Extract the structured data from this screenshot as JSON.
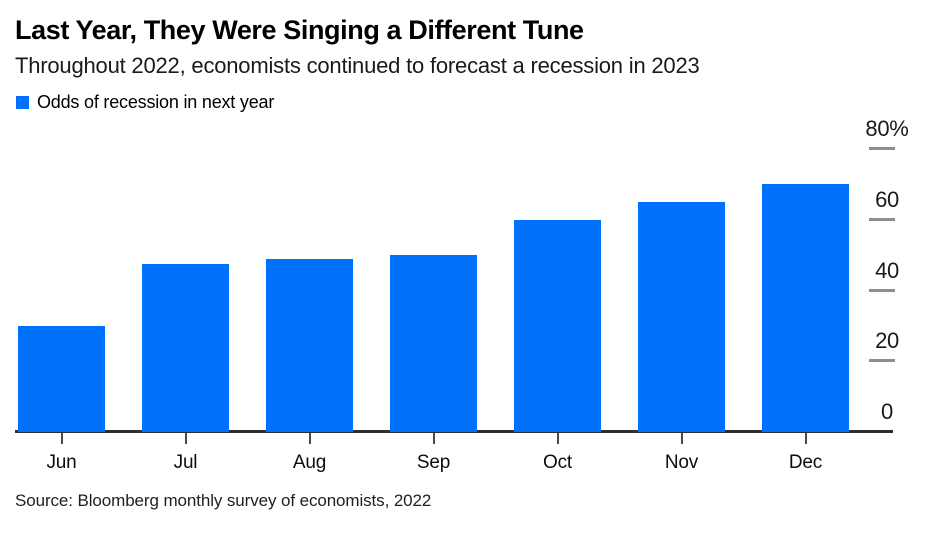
{
  "header": {
    "title": "Last Year, They Were Singing a Different Tune",
    "subtitle": "Throughout 2022, economists continued to forecast a recession in 2023"
  },
  "legend": {
    "label": "Odds of recession in next year",
    "marker_color": "#0071fa"
  },
  "footer": {
    "source": "Source: Bloomberg monthly survey of economists, 2022"
  },
  "colors": {
    "bar": "#0071fa",
    "baseline": "#2e2e2e",
    "y_tick_dash": "#8e8e8e",
    "x_tick": "#4a4a4a",
    "title_text": "#000000",
    "background": "#ffffff"
  },
  "chart_data": {
    "type": "bar",
    "title": "Last Year, They Were Singing a Different Tune",
    "subtitle": "Throughout 2022, economists continued to forecast a recession in 2023",
    "series_name": "Odds of recession in next year",
    "categories": [
      "Jun",
      "Jul",
      "Aug",
      "Sep",
      "Oct",
      "Nov",
      "Dec"
    ],
    "values": [
      30,
      47.5,
      49,
      50,
      60,
      65,
      70
    ],
    "unit": "%",
    "ylim": [
      0,
      80
    ],
    "y_ticks": [
      0,
      20,
      40,
      60,
      80
    ],
    "y_tick_labels": [
      "0",
      "20",
      "40",
      "60",
      "80%"
    ],
    "axis_labels_side": "right",
    "grid": false,
    "legend_position": "top-left",
    "bar_color": "#0071fa",
    "source": "Source: Bloomberg monthly survey of economists, 2022"
  }
}
